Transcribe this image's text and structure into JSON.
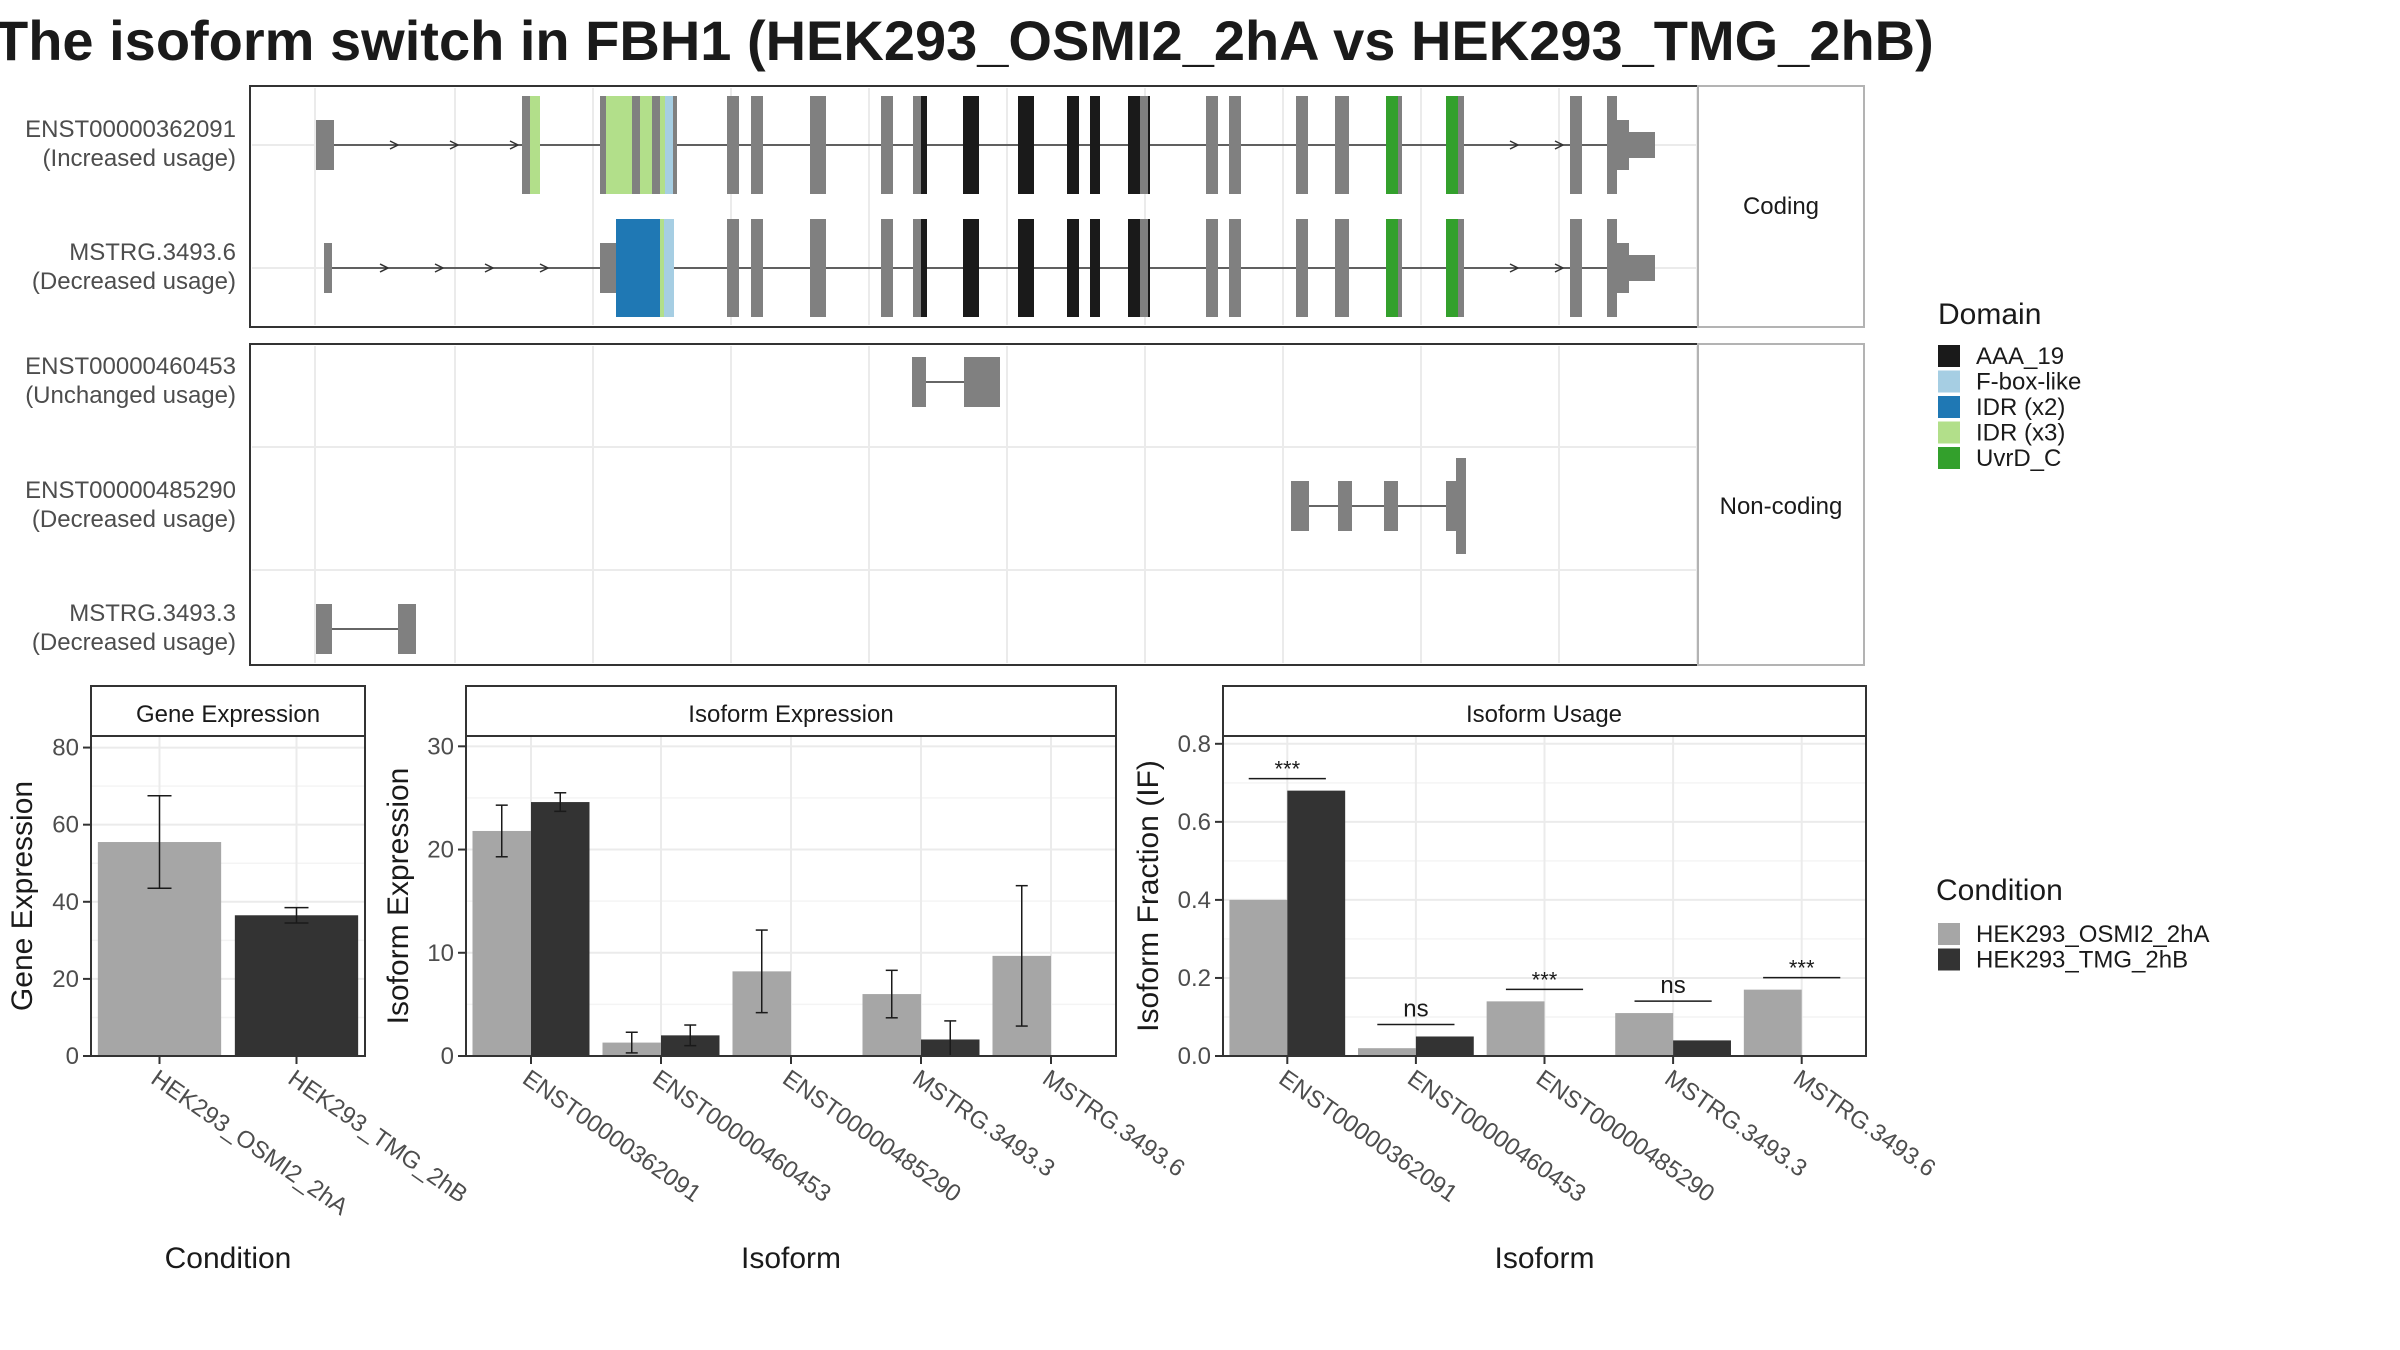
{
  "title": "The isoform switch in FBH1 (HEK293_OSMI2_2hA vs HEK293_TMG_2hB)",
  "colors": {
    "condition_a": "#a6a6a6",
    "condition_b": "#333333",
    "exon": "#808080",
    "domains": {
      "AAA_19": "#1a1a1a",
      "F-box-like": "#a6cee3",
      "IDR (x2)": "#1f78b4",
      "IDR (x3)": "#b2df8a",
      "UvrD_C": "#33a02c"
    }
  },
  "structure": {
    "coding_label": "Coding",
    "noncoding_label": "Non-coding",
    "transcripts": [
      {
        "id": "ENST00000362091",
        "usage": "(Increased usage)",
        "group": "coding"
      },
      {
        "id": "MSTRG.3493.6",
        "usage": "(Decreased usage)",
        "group": "coding"
      },
      {
        "id": "ENST00000460453",
        "usage": "(Unchanged usage)",
        "group": "noncoding"
      },
      {
        "id": "ENST00000485290",
        "usage": "(Decreased usage)",
        "group": "noncoding"
      },
      {
        "id": "MSTRG.3493.3",
        "usage": "(Decreased usage)",
        "group": "noncoding"
      }
    ]
  },
  "legend_domain": {
    "title": "Domain",
    "items": [
      "AAA_19",
      "F-box-like",
      "IDR (x2)",
      "IDR (x3)",
      "UvrD_C"
    ]
  },
  "legend_condition": {
    "title": "Condition",
    "items": [
      "HEK293_OSMI2_2hA",
      "HEK293_TMG_2hB"
    ]
  },
  "chart_data": [
    {
      "type": "bar",
      "title": "Gene Expression",
      "xlabel": "Condition",
      "ylabel": "Gene Expression",
      "ylim": [
        0,
        83
      ],
      "yticks": [
        0,
        20,
        40,
        60,
        80
      ],
      "categories": [
        "HEK293_OSMI2_2hA",
        "HEK293_TMG_2hB"
      ],
      "values": [
        55.5,
        36.5
      ],
      "errors": [
        [
          43.5,
          67.5
        ],
        [
          34.5,
          38.5
        ]
      ]
    },
    {
      "type": "bar",
      "title": "Isoform Expression",
      "xlabel": "Isoform",
      "ylabel": "Isoform Expression",
      "ylim": [
        0,
        31
      ],
      "yticks": [
        0,
        10,
        20,
        30
      ],
      "categories": [
        "ENST00000362091",
        "ENST00000460453",
        "ENST00000485290",
        "MSTRG.3493.3",
        "MSTRG.3493.6"
      ],
      "series": [
        {
          "name": "HEK293_OSMI2_2hA",
          "values": [
            21.8,
            1.3,
            8.2,
            6.0,
            9.7
          ],
          "errors": [
            [
              19.3,
              24.3
            ],
            [
              0.3,
              2.3
            ],
            [
              4.2,
              12.2
            ],
            [
              3.7,
              8.3
            ],
            [
              2.9,
              16.5
            ]
          ]
        },
        {
          "name": "HEK293_TMG_2hB",
          "values": [
            24.6,
            2.0,
            0,
            1.6,
            0
          ],
          "errors": [
            [
              23.7,
              25.5
            ],
            [
              1.0,
              3.0
            ],
            [
              0,
              0
            ],
            [
              0,
              3.4
            ],
            [
              0,
              0
            ]
          ]
        }
      ]
    },
    {
      "type": "bar",
      "title": "Isoform Usage",
      "xlabel": "Isoform",
      "ylabel": "Isoform Fraction (IF)",
      "ylim": [
        0,
        0.82
      ],
      "yticks": [
        "0.0",
        "0.2",
        "0.4",
        "0.6",
        "0.8"
      ],
      "categories": [
        "ENST00000362091",
        "ENST00000460453",
        "ENST00000485290",
        "MSTRG.3493.3",
        "MSTRG.3493.6"
      ],
      "series": [
        {
          "name": "HEK293_OSMI2_2hA",
          "values": [
            0.4,
            0.02,
            0.14,
            0.11,
            0.17
          ]
        },
        {
          "name": "HEK293_TMG_2hB",
          "values": [
            0.68,
            0.05,
            0,
            0.04,
            0
          ]
        }
      ],
      "significance": [
        "***",
        "ns",
        "***",
        "ns",
        "***"
      ]
    }
  ]
}
